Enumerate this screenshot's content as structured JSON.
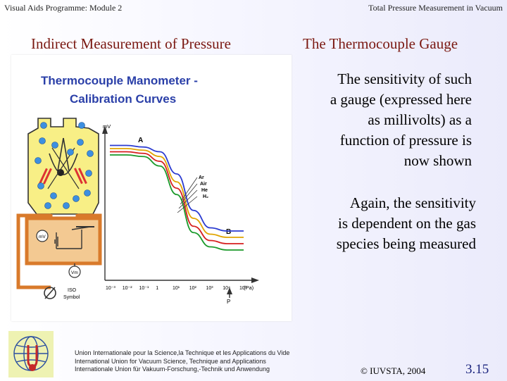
{
  "header": {
    "left": "Visual Aids Programme: Module 2",
    "right": "Total Pressure Measurement in Vacuum"
  },
  "titles": {
    "left": "Indirect Measurement of Pressure",
    "right": "The Thermocouple Gauge"
  },
  "figure": {
    "title_line1": "Thermocouple Manometer -",
    "title_line2": "Calibration Curves",
    "y_axis_label": "mV",
    "x_axis_label": "P",
    "x_unit": "(Pa)",
    "label_a": "A",
    "label_b": "B",
    "gases": [
      "Ar",
      "Air",
      "He",
      "H₂"
    ],
    "x_ticks": [
      "10⁻³",
      "10⁻²",
      "10⁻¹",
      "1",
      "10¹",
      "10²",
      "10³",
      "10⁴",
      "10⁵"
    ],
    "meter_mv": "mV",
    "meter_vm": "Vm",
    "iso_label": "ISO",
    "symbol_label": "Symbol"
  },
  "colors": {
    "title_red": "#7a1810",
    "figure_title_blue": "#2a3fa8",
    "slide_number": "#1a237e",
    "curve_ar": "#2b3bd0",
    "curve_air": "#e0a400",
    "curve_he": "#d61f1f",
    "curve_h2": "#1a9a2a",
    "gauge_yellow": "#f8ef86",
    "circuit_orange": "#d97a2b"
  },
  "body": {
    "para1_lines": [
      "The sensitivity of such",
      "a gauge (expressed here",
      "as millivolts) as a",
      "function of pressure is",
      "now shown"
    ],
    "para2_lines": [
      "Again, the sensitivity",
      "is dependent on the gas",
      "species being measured"
    ]
  },
  "footer": {
    "lines": [
      "Union Internationale pour la Science,la Technique et les Applications du Vide",
      "International Union for Vacuum Science, Technique and Applications",
      "Internationale Union für Vakuum-Forschung,-Technik und Anwendung"
    ],
    "copyright": "© IUVSTA, 2004",
    "slide_number": "3.15"
  },
  "chart_data": {
    "type": "line",
    "title": "Thermocouple Manometer - Calibration Curves",
    "xlabel": "P (Pa)",
    "ylabel": "mV",
    "x_scale": "log",
    "x": [
      0.001,
      0.01,
      0.1,
      1,
      10,
      100,
      1000,
      10000,
      100000
    ],
    "series": [
      {
        "name": "Ar",
        "values": [
          7.4,
          7.4,
          7.3,
          7.0,
          5.6,
          3.3,
          2.2,
          2.0,
          2.0
        ]
      },
      {
        "name": "Air",
        "values": [
          7.2,
          7.2,
          7.1,
          6.7,
          5.1,
          2.8,
          1.8,
          1.6,
          1.6
        ]
      },
      {
        "name": "He",
        "values": [
          7.0,
          7.0,
          6.9,
          6.4,
          4.7,
          2.3,
          1.4,
          1.2,
          1.2
        ]
      },
      {
        "name": "H₂",
        "values": [
          6.8,
          6.8,
          6.7,
          6.1,
          4.3,
          1.9,
          1.0,
          0.8,
          0.8
        ]
      }
    ],
    "ylim": [
      0,
      8
    ],
    "grid": false,
    "legend": "top-right"
  }
}
